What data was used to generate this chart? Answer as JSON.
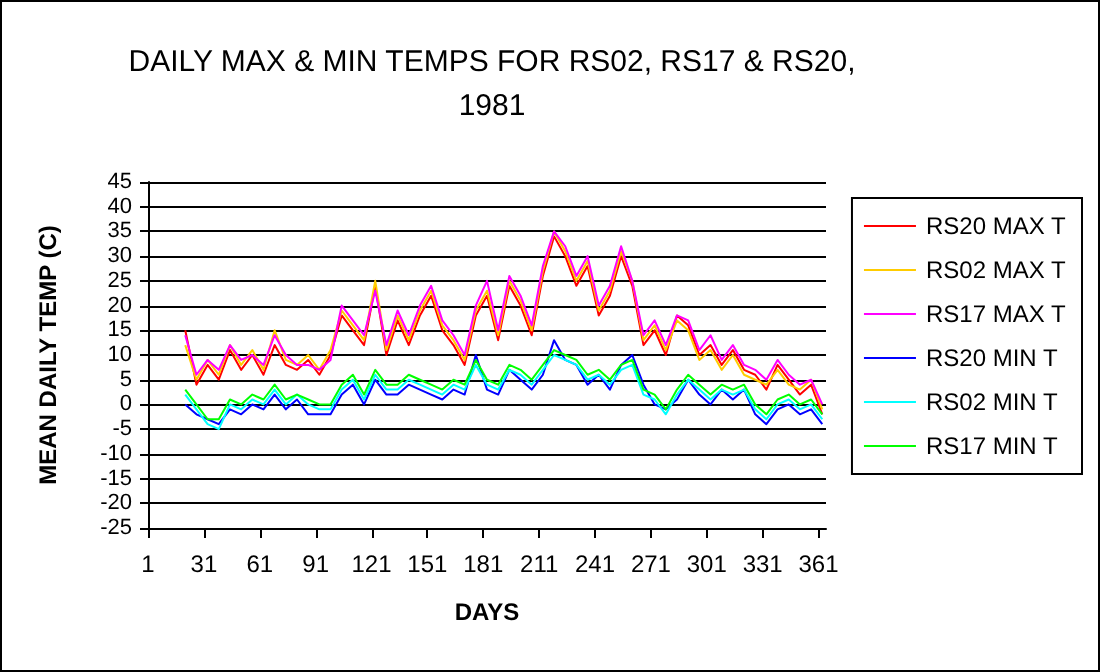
{
  "chart_data": {
    "type": "line",
    "title": "DAILY MAX & MIN TEMPS FOR RS02, RS17 & RS20,\n1981",
    "xlabel": "DAYS",
    "ylabel": "MEAN DAILY TEMP (C)",
    "x": [
      21,
      27,
      33,
      39,
      45,
      51,
      57,
      63,
      69,
      75,
      81,
      87,
      93,
      99,
      105,
      111,
      117,
      123,
      129,
      135,
      141,
      147,
      153,
      159,
      165,
      171,
      177,
      183,
      189,
      195,
      201,
      207,
      213,
      219,
      225,
      231,
      237,
      243,
      249,
      255,
      261,
      267,
      273,
      279,
      285,
      291,
      297,
      303,
      309,
      315,
      321,
      327,
      333,
      339,
      345,
      351,
      357,
      363
    ],
    "series": [
      {
        "name": "RS20 MAX T",
        "color": "#ff0000",
        "values": [
          15,
          4,
          8,
          5,
          11,
          7,
          10,
          6,
          12,
          8,
          7,
          9,
          6,
          10,
          18,
          15,
          12,
          24,
          10,
          17,
          12,
          18,
          22,
          15,
          12,
          8,
          18,
          22,
          13,
          24,
          20,
          14,
          26,
          34,
          30,
          24,
          28,
          18,
          22,
          30,
          24,
          12,
          15,
          10,
          18,
          16,
          10,
          12,
          8,
          11,
          7,
          6,
          3,
          8,
          5,
          2,
          4,
          -2
        ]
      },
      {
        "name": "RS02 MAX T",
        "color": "#ffcc00",
        "values": [
          12,
          5,
          9,
          6,
          12,
          8,
          11,
          7,
          15,
          9,
          8,
          10,
          7,
          11,
          19,
          16,
          13,
          25,
          11,
          18,
          13,
          19,
          23,
          16,
          13,
          9,
          19,
          23,
          14,
          25,
          21,
          15,
          27,
          35,
          31,
          25,
          29,
          19,
          23,
          31,
          25,
          13,
          16,
          11,
          17,
          15,
          9,
          11,
          7,
          10,
          6,
          5,
          4,
          7,
          4,
          3,
          5,
          -1
        ]
      },
      {
        "name": "RS17 MAX T",
        "color": "#ff00ff",
        "values": [
          14,
          6,
          9,
          7,
          12,
          9,
          10,
          8,
          14,
          10,
          8,
          8,
          7,
          9,
          20,
          17,
          14,
          23,
          12,
          19,
          14,
          20,
          24,
          17,
          14,
          10,
          20,
          25,
          15,
          26,
          22,
          16,
          28,
          35,
          32,
          26,
          30,
          20,
          24,
          32,
          25,
          14,
          17,
          12,
          18,
          17,
          11,
          14,
          9,
          12,
          8,
          7,
          5,
          9,
          6,
          4,
          5,
          0
        ]
      },
      {
        "name": "RS20 MIN T",
        "color": "#0000ff",
        "values": [
          0,
          -2,
          -3,
          -4,
          -1,
          -2,
          0,
          -1,
          2,
          -1,
          1,
          -2,
          -2,
          -2,
          2,
          4,
          0,
          5,
          2,
          2,
          4,
          3,
          2,
          1,
          3,
          2,
          10,
          3,
          2,
          7,
          5,
          3,
          6,
          13,
          9,
          8,
          4,
          6,
          3,
          8,
          10,
          4,
          0,
          -1,
          1,
          5,
          2,
          0,
          3,
          1,
          3,
          -2,
          -4,
          -1,
          0,
          -2,
          -1,
          -4
        ]
      },
      {
        "name": "RS02 MIN T",
        "color": "#00ffff",
        "values": [
          2,
          -1,
          -4,
          -5,
          0,
          -1,
          1,
          0,
          3,
          0,
          2,
          0,
          -1,
          -1,
          3,
          5,
          1,
          6,
          3,
          3,
          5,
          4,
          3,
          2,
          4,
          3,
          8,
          4,
          3,
          7,
          6,
          4,
          7,
          10,
          9,
          8,
          5,
          6,
          4,
          7,
          8,
          2,
          1,
          -2,
          2,
          5,
          3,
          1,
          3,
          2,
          3,
          -1,
          -3,
          0,
          1,
          -1,
          0,
          -3
        ]
      },
      {
        "name": "RS17 MIN T",
        "color": "#00ff00",
        "values": [
          3,
          0,
          -3,
          -3,
          1,
          0,
          2,
          1,
          4,
          1,
          2,
          1,
          0,
          0,
          4,
          6,
          2,
          7,
          4,
          4,
          6,
          5,
          4,
          3,
          5,
          4,
          9,
          5,
          4,
          8,
          7,
          5,
          8,
          11,
          10,
          9,
          6,
          7,
          5,
          8,
          9,
          3,
          2,
          -1,
          3,
          6,
          4,
          2,
          4,
          3,
          4,
          0,
          -2,
          1,
          2,
          0,
          1,
          -2
        ]
      }
    ],
    "xlim": [
      1,
      365
    ],
    "xticks": [
      1,
      31,
      61,
      91,
      121,
      151,
      181,
      211,
      241,
      271,
      301,
      331,
      361
    ],
    "ylim": [
      -25,
      45
    ],
    "yticks": [
      -25,
      -20,
      -15,
      -10,
      -5,
      0,
      5,
      10,
      15,
      20,
      25,
      30,
      35,
      40,
      45
    ],
    "grid": "y",
    "legend": "right",
    "marker": "none",
    "line_style": "solid"
  }
}
